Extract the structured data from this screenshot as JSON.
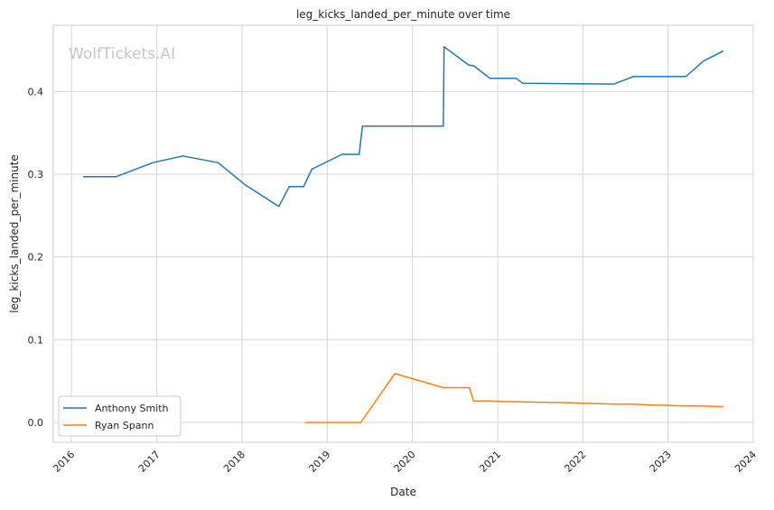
{
  "chart_data": {
    "type": "line",
    "title": "leg_kicks_landed_per_minute over time",
    "xlabel": "Date",
    "ylabel": "leg_kicks_landed_per_minute",
    "watermark": "WolfTickets.AI",
    "xlim": [
      "2015-10-15",
      "2024-01-01"
    ],
    "ylim": [
      -0.024,
      0.48
    ],
    "x_ticks": [
      "2016-01-01",
      "2017-01-01",
      "2018-01-01",
      "2019-01-01",
      "2020-01-01",
      "2021-01-01",
      "2022-01-01",
      "2023-01-01",
      "2024-01-01"
    ],
    "x_tick_labels": [
      "2016",
      "2017",
      "2018",
      "2019",
      "2020",
      "2021",
      "2022",
      "2023",
      "2024"
    ],
    "y_ticks": [
      0.0,
      0.1,
      0.2,
      0.3,
      0.4
    ],
    "y_tick_labels": [
      "0.0",
      "0.1",
      "0.2",
      "0.3",
      "0.4"
    ],
    "grid": true,
    "legend_position": "lower-left",
    "series": [
      {
        "name": "Anthony Smith",
        "color": "#1f77b4",
        "points": [
          [
            "2016-02-20",
            0.297
          ],
          [
            "2016-07-10",
            0.297
          ],
          [
            "2016-12-15",
            0.314
          ],
          [
            "2017-04-22",
            0.322
          ],
          [
            "2017-09-20",
            0.314
          ],
          [
            "2018-01-15",
            0.287
          ],
          [
            "2018-06-08",
            0.261
          ],
          [
            "2018-07-22",
            0.285
          ],
          [
            "2018-09-22",
            0.285
          ],
          [
            "2018-10-27",
            0.306
          ],
          [
            "2019-03-05",
            0.324
          ],
          [
            "2019-05-18",
            0.324
          ],
          [
            "2019-06-01",
            0.358
          ],
          [
            "2020-05-13",
            0.358
          ],
          [
            "2020-05-16",
            0.454
          ],
          [
            "2020-08-29",
            0.432
          ],
          [
            "2020-09-20",
            0.431
          ],
          [
            "2020-11-28",
            0.416
          ],
          [
            "2021-03-20",
            0.416
          ],
          [
            "2021-04-18",
            0.41
          ],
          [
            "2022-05-14",
            0.409
          ],
          [
            "2022-08-06",
            0.418
          ],
          [
            "2023-03-18",
            0.418
          ],
          [
            "2023-06-03",
            0.437
          ],
          [
            "2023-08-26",
            0.449
          ]
        ]
      },
      {
        "name": "Ryan Spann",
        "color": "#ff7f0e",
        "points": [
          [
            "2018-09-29",
            0.0
          ],
          [
            "2019-05-25",
            0.0
          ],
          [
            "2019-10-18",
            0.059
          ],
          [
            "2020-05-13",
            0.042
          ],
          [
            "2020-09-02",
            0.042
          ],
          [
            "2020-09-19",
            0.026
          ],
          [
            "2020-11-28",
            0.026
          ],
          [
            "2021-03-13",
            0.025
          ],
          [
            "2021-10-09",
            0.024
          ],
          [
            "2022-05-21",
            0.022
          ],
          [
            "2022-07-30",
            0.022
          ],
          [
            "2022-11-05",
            0.021
          ],
          [
            "2023-03-18",
            0.02
          ],
          [
            "2023-06-01",
            0.02
          ],
          [
            "2023-08-26",
            0.019
          ]
        ]
      }
    ]
  }
}
